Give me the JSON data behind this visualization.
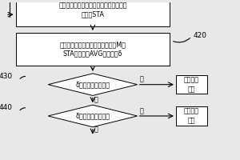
{
  "bg_color": "#e8e8e8",
  "box_color": "#ffffff",
  "box_border": "#000000",
  "arrow_color": "#000000",
  "text_color": "#000000",
  "box1_text": "获取下一个报文中的数据，得出下一个启\n动时间STA",
  "box2_text": "取两个计数器之和个时间点之前的M个\nSTA，求均值AVG以及方差δ",
  "box2_label": "420",
  "diamond1_text": "δ是否大于故障阈值",
  "diamond1_label": "430",
  "diamond2_text": "δ是否大于衰退阈值",
  "diamond2_label": "440",
  "right_box1_text": "发出故障\n报警",
  "right_box2_text": "发出衰退\n报警",
  "yes_label": "是",
  "no_label": "否",
  "font_size": 5.8,
  "label_font_size": 6.5
}
